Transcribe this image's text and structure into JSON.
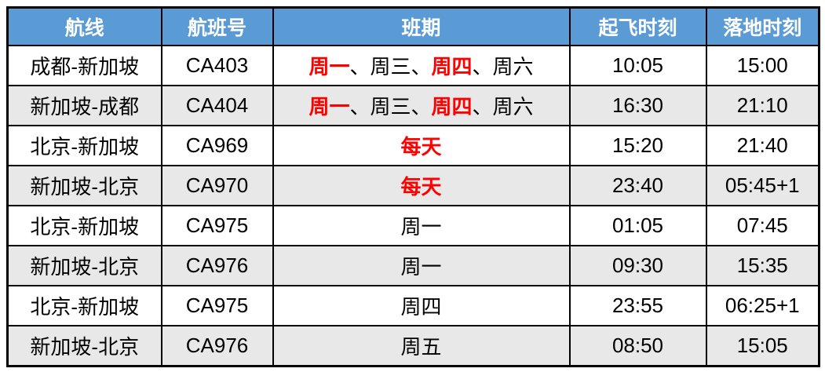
{
  "table": {
    "headers": [
      "航线",
      "航班号",
      "班期",
      "起飞时刻",
      "落地时刻"
    ],
    "rows": [
      {
        "route": "成都-新加坡",
        "flight_no": "CA403",
        "schedule": [
          {
            "text": "周一",
            "highlight": true
          },
          {
            "text": "、",
            "highlight": false
          },
          {
            "text": "周三",
            "highlight": false
          },
          {
            "text": "、",
            "highlight": false
          },
          {
            "text": "周四",
            "highlight": true
          },
          {
            "text": "、",
            "highlight": false
          },
          {
            "text": "周六",
            "highlight": false
          }
        ],
        "departure": "10:05",
        "arrival": "15:00"
      },
      {
        "route": "新加坡-成都",
        "flight_no": "CA404",
        "schedule": [
          {
            "text": "周一",
            "highlight": true
          },
          {
            "text": "、",
            "highlight": false
          },
          {
            "text": "周三",
            "highlight": false
          },
          {
            "text": "、",
            "highlight": false
          },
          {
            "text": "周四",
            "highlight": true
          },
          {
            "text": "、",
            "highlight": false
          },
          {
            "text": "周六",
            "highlight": false
          }
        ],
        "departure": "16:30",
        "arrival": "21:10"
      },
      {
        "route": "北京-新加坡",
        "flight_no": "CA969",
        "schedule": [
          {
            "text": "每天",
            "highlight": true
          }
        ],
        "departure": "15:20",
        "arrival": "21:40"
      },
      {
        "route": "新加坡-北京",
        "flight_no": "CA970",
        "schedule": [
          {
            "text": "每天",
            "highlight": true
          }
        ],
        "departure": "23:40",
        "arrival": "05:45+1"
      },
      {
        "route": "北京-新加坡",
        "flight_no": "CA975",
        "schedule": [
          {
            "text": "周一",
            "highlight": false
          }
        ],
        "departure": "01:05",
        "arrival": "07:45"
      },
      {
        "route": "新加坡-北京",
        "flight_no": "CA976",
        "schedule": [
          {
            "text": "周一",
            "highlight": false
          }
        ],
        "departure": "09:30",
        "arrival": "15:35"
      },
      {
        "route": "北京-新加坡",
        "flight_no": "CA975",
        "schedule": [
          {
            "text": "周四",
            "highlight": false
          }
        ],
        "departure": "23:55",
        "arrival": "06:25+1"
      },
      {
        "route": "新加坡-北京",
        "flight_no": "CA976",
        "schedule": [
          {
            "text": "周五",
            "highlight": false
          }
        ],
        "departure": "08:50",
        "arrival": "15:05"
      }
    ]
  },
  "chart_data": {
    "type": "table",
    "title": "",
    "columns": [
      "航线",
      "航班号",
      "班期",
      "起飞时刻",
      "落地时刻"
    ],
    "rows": [
      [
        "成都-新加坡",
        "CA403",
        "周一、周三、周四、周六",
        "10:05",
        "15:00"
      ],
      [
        "新加坡-成都",
        "CA404",
        "周一、周三、周四、周六",
        "16:30",
        "21:10"
      ],
      [
        "北京-新加坡",
        "CA969",
        "每天",
        "15:20",
        "21:40"
      ],
      [
        "新加坡-北京",
        "CA970",
        "每天",
        "23:40",
        "05:45+1"
      ],
      [
        "北京-新加坡",
        "CA975",
        "周一",
        "01:05",
        "07:45"
      ],
      [
        "新加坡-北京",
        "CA976",
        "周一",
        "09:30",
        "15:35"
      ],
      [
        "北京-新加坡",
        "CA975",
        "周四",
        "23:55",
        "06:25+1"
      ],
      [
        "新加坡-北京",
        "CA976",
        "周五",
        "08:50",
        "15:05"
      ]
    ],
    "highlighted_red_terms": [
      "周一",
      "周四",
      "每天"
    ],
    "layout": "header row blue, data rows alternate white/light-gray, black grid borders"
  },
  "colors": {
    "header_bg": "#5B9BD5",
    "header_text": "#FFFFFF",
    "row_bg": "#FFFFFF",
    "row_alt_bg": "#E8E8E8",
    "border": "#000000",
    "text": "#000000",
    "highlight_red": "#FE0000"
  }
}
